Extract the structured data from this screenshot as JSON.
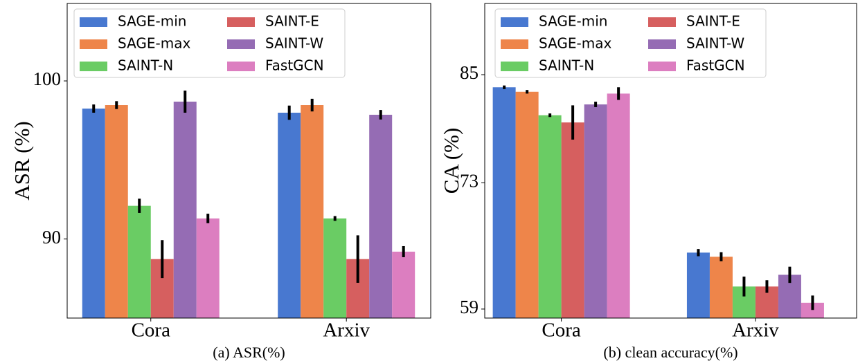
{
  "chart_data": [
    {
      "type": "bar",
      "ylabel": "ASR (%)",
      "caption": "(a) ASR(%)",
      "categories": [
        "Cora",
        "Arxiv"
      ],
      "ylim": [
        85,
        104.9
      ],
      "yticks": [
        90,
        100
      ],
      "legend": "upper left",
      "series": [
        {
          "name": "SAGE-min",
          "color": "#4878d0",
          "values": [
            98.25,
            97.99
          ],
          "errors": [
            0.26,
            0.45
          ]
        },
        {
          "name": "SAGE-max",
          "color": "#ee854a",
          "values": [
            98.47,
            98.47
          ],
          "errors": [
            0.25,
            0.4
          ]
        },
        {
          "name": "SAINT-N",
          "color": "#6acc64",
          "values": [
            92.1,
            91.3
          ],
          "errors": [
            0.45,
            0.15
          ]
        },
        {
          "name": "SAINT-E",
          "color": "#d65f5f",
          "values": [
            88.73,
            88.73
          ],
          "errors": [
            1.2,
            1.5
          ]
        },
        {
          "name": "SAINT-W",
          "color": "#956cb4",
          "values": [
            98.69,
            97.86
          ],
          "errors": [
            0.7,
            0.3
          ]
        },
        {
          "name": "FastGCN",
          "color": "#dc7ec0",
          "values": [
            91.3,
            89.2
          ],
          "errors": [
            0.3,
            0.35
          ]
        }
      ]
    },
    {
      "type": "bar",
      "ylabel": "CA (%)",
      "caption": "(b) clean accuracy(%)",
      "categories": [
        "Cora",
        "Arxiv"
      ],
      "ylim": [
        58,
        92.9
      ],
      "yticks": [
        59,
        73,
        85
      ],
      "legend": "upper left",
      "series": [
        {
          "name": "SAGE-min",
          "color": "#4878d0",
          "values": [
            83.6,
            65.26
          ],
          "errors": [
            0.2,
            0.4
          ]
        },
        {
          "name": "SAGE-max",
          "color": "#ee854a",
          "values": [
            83.1,
            64.8
          ],
          "errors": [
            0.2,
            0.5
          ]
        },
        {
          "name": "SAINT-N",
          "color": "#6acc64",
          "values": [
            80.5,
            61.5
          ],
          "errors": [
            0.2,
            1.1
          ]
        },
        {
          "name": "SAINT-E",
          "color": "#d65f5f",
          "values": [
            79.7,
            61.5
          ],
          "errors": [
            1.9,
            0.7
          ]
        },
        {
          "name": "SAINT-W",
          "color": "#956cb4",
          "values": [
            81.7,
            62.8
          ],
          "errors": [
            0.3,
            0.9
          ]
        },
        {
          "name": "FastGCN",
          "color": "#dc7ec0",
          "values": [
            82.9,
            59.7
          ],
          "errors": [
            0.7,
            0.8
          ]
        }
      ]
    }
  ]
}
